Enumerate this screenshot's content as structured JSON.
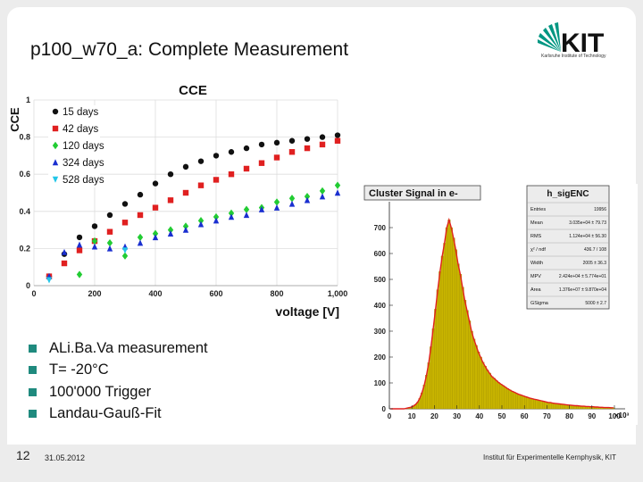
{
  "slide": {
    "title": "p100_w70_a: Complete Measurement",
    "page_number": "12",
    "date": "31.05.2012",
    "institute": "Institut für Experimentelle Kernphysik, KIT",
    "logo": {
      "text": "KIT",
      "subtitle": "Karlsruhe Institute of Technology"
    },
    "bullets": [
      "ALi.Ba.Va measurement",
      "T= -20°C",
      "100'000 Trigger",
      "Landau-Gauß-Fit"
    ]
  },
  "colors": {
    "accent": "#1f8a7e",
    "logo_green": "#009682",
    "series_15": "#111111",
    "series_42": "#e02020",
    "series_120": "#22cc33",
    "series_324": "#1a2fd0",
    "series_528": "#22c6e8",
    "hist_fill": "#c8b400",
    "fit_line": "#e02020"
  },
  "chart_data": [
    {
      "type": "scatter",
      "title": "CCE",
      "xlabel": "voltage [V]",
      "ylabel": "CCE",
      "xlim": [
        0,
        1000
      ],
      "ylim": [
        0,
        1
      ],
      "xticks": [
        "0",
        "200",
        "400",
        "600",
        "800",
        "1,000"
      ],
      "yticks": [
        "0",
        "0.2",
        "0.4",
        "0.6",
        "0.8",
        "1"
      ],
      "grid": true,
      "legend_position": "top-left",
      "series": [
        {
          "name": "15 days",
          "marker": "circle",
          "color": "#111111",
          "x": [
            50,
            100,
            150,
            200,
            250,
            300,
            350,
            400,
            450,
            500,
            550,
            600,
            650,
            700,
            750,
            800,
            850,
            900,
            950,
            1000
          ],
          "y": [
            0.05,
            0.17,
            0.26,
            0.32,
            0.38,
            0.44,
            0.49,
            0.55,
            0.6,
            0.64,
            0.67,
            0.7,
            0.72,
            0.74,
            0.76,
            0.77,
            0.78,
            0.79,
            0.8,
            0.81
          ]
        },
        {
          "name": "42 days",
          "marker": "square",
          "color": "#e02020",
          "x": [
            50,
            100,
            150,
            200,
            250,
            300,
            350,
            400,
            450,
            500,
            550,
            600,
            650,
            700,
            750,
            800,
            850,
            900,
            950,
            1000
          ],
          "y": [
            0.05,
            0.12,
            0.19,
            0.24,
            0.29,
            0.34,
            0.38,
            0.42,
            0.46,
            0.5,
            0.54,
            0.57,
            0.6,
            0.63,
            0.66,
            0.69,
            0.72,
            0.74,
            0.76,
            0.78
          ]
        },
        {
          "name": "120 days",
          "marker": "diamond",
          "color": "#22cc33",
          "x": [
            150,
            200,
            250,
            300,
            350,
            400,
            450,
            500,
            550,
            600,
            650,
            700,
            750,
            800,
            850,
            900,
            950,
            1000
          ],
          "y": [
            0.06,
            0.24,
            0.23,
            0.16,
            0.26,
            0.28,
            0.3,
            0.32,
            0.35,
            0.37,
            0.39,
            0.41,
            0.42,
            0.45,
            0.47,
            0.48,
            0.51,
            0.54
          ]
        },
        {
          "name": "324 days",
          "marker": "triangle",
          "color": "#1a2fd0",
          "x": [
            50,
            100,
            150,
            200,
            250,
            300,
            350,
            400,
            450,
            500,
            550,
            600,
            650,
            700,
            750,
            800,
            850,
            900,
            950,
            1000
          ],
          "y": [
            0.05,
            0.18,
            0.22,
            0.21,
            0.2,
            0.21,
            0.23,
            0.26,
            0.28,
            0.3,
            0.33,
            0.35,
            0.37,
            0.38,
            0.41,
            0.42,
            0.44,
            0.46,
            0.48,
            0.5
          ]
        },
        {
          "name": "528 days",
          "marker": "triangle-down",
          "color": "#22c6e8",
          "x": [
            50,
            300
          ],
          "y": [
            0.03,
            0.19
          ]
        }
      ]
    },
    {
      "type": "histogram",
      "title": "Cluster Signal in e-",
      "ylim": [
        0,
        800
      ],
      "xlim": [
        0,
        100000
      ],
      "yticks": [
        "0",
        "100",
        "200",
        "300",
        "400",
        "500",
        "600",
        "700"
      ],
      "xticks": [
        "0",
        "10",
        "20",
        "30",
        "40",
        "50",
        "60",
        "70",
        "80",
        "90",
        "100"
      ],
      "x_exponent": "×10³",
      "bin_width": 1000,
      "bin_counts": [
        0,
        0,
        0,
        0,
        0,
        0,
        0,
        2,
        4,
        6,
        10,
        16,
        25,
        40,
        62,
        92,
        130,
        178,
        240,
        310,
        385,
        460,
        530,
        590,
        640,
        700,
        730,
        700,
        660,
        615,
        560,
        520,
        470,
        420,
        380,
        340,
        300,
        270,
        245,
        220,
        200,
        180,
        165,
        150,
        138,
        125,
        118,
        110,
        102,
        96,
        90,
        84,
        78,
        73,
        68,
        64,
        60,
        56,
        53,
        50,
        47,
        44,
        41,
        39,
        37,
        35,
        33,
        31,
        29,
        27,
        25,
        24,
        22,
        21,
        20,
        19,
        18,
        17,
        16,
        15,
        14,
        13,
        12,
        12,
        11,
        10,
        10,
        9,
        9,
        8,
        8,
        7,
        7,
        6,
        6,
        5,
        5,
        5,
        4,
        4
      ],
      "stats": {
        "name": "h_sigENC",
        "rows": [
          {
            "label": "Entries",
            "value": "19956"
          },
          {
            "label": "Mean",
            "value": "3.035e+04 ± 79.73"
          },
          {
            "label": "RMS",
            "value": "1.124e+04 ± 56.30"
          },
          {
            "label": "χ² / ndf",
            "value": "436.7 / 108"
          },
          {
            "label": "Width",
            "value": "2005 ± 36.3"
          },
          {
            "label": "MPV",
            "value": "2.424e+04 ± 5.774e+01"
          },
          {
            "label": "Area",
            "value": "1.376e+07 ± 9.870e+04"
          },
          {
            "label": "GSigma",
            "value": "5000 ± 2.7"
          }
        ]
      }
    }
  ]
}
